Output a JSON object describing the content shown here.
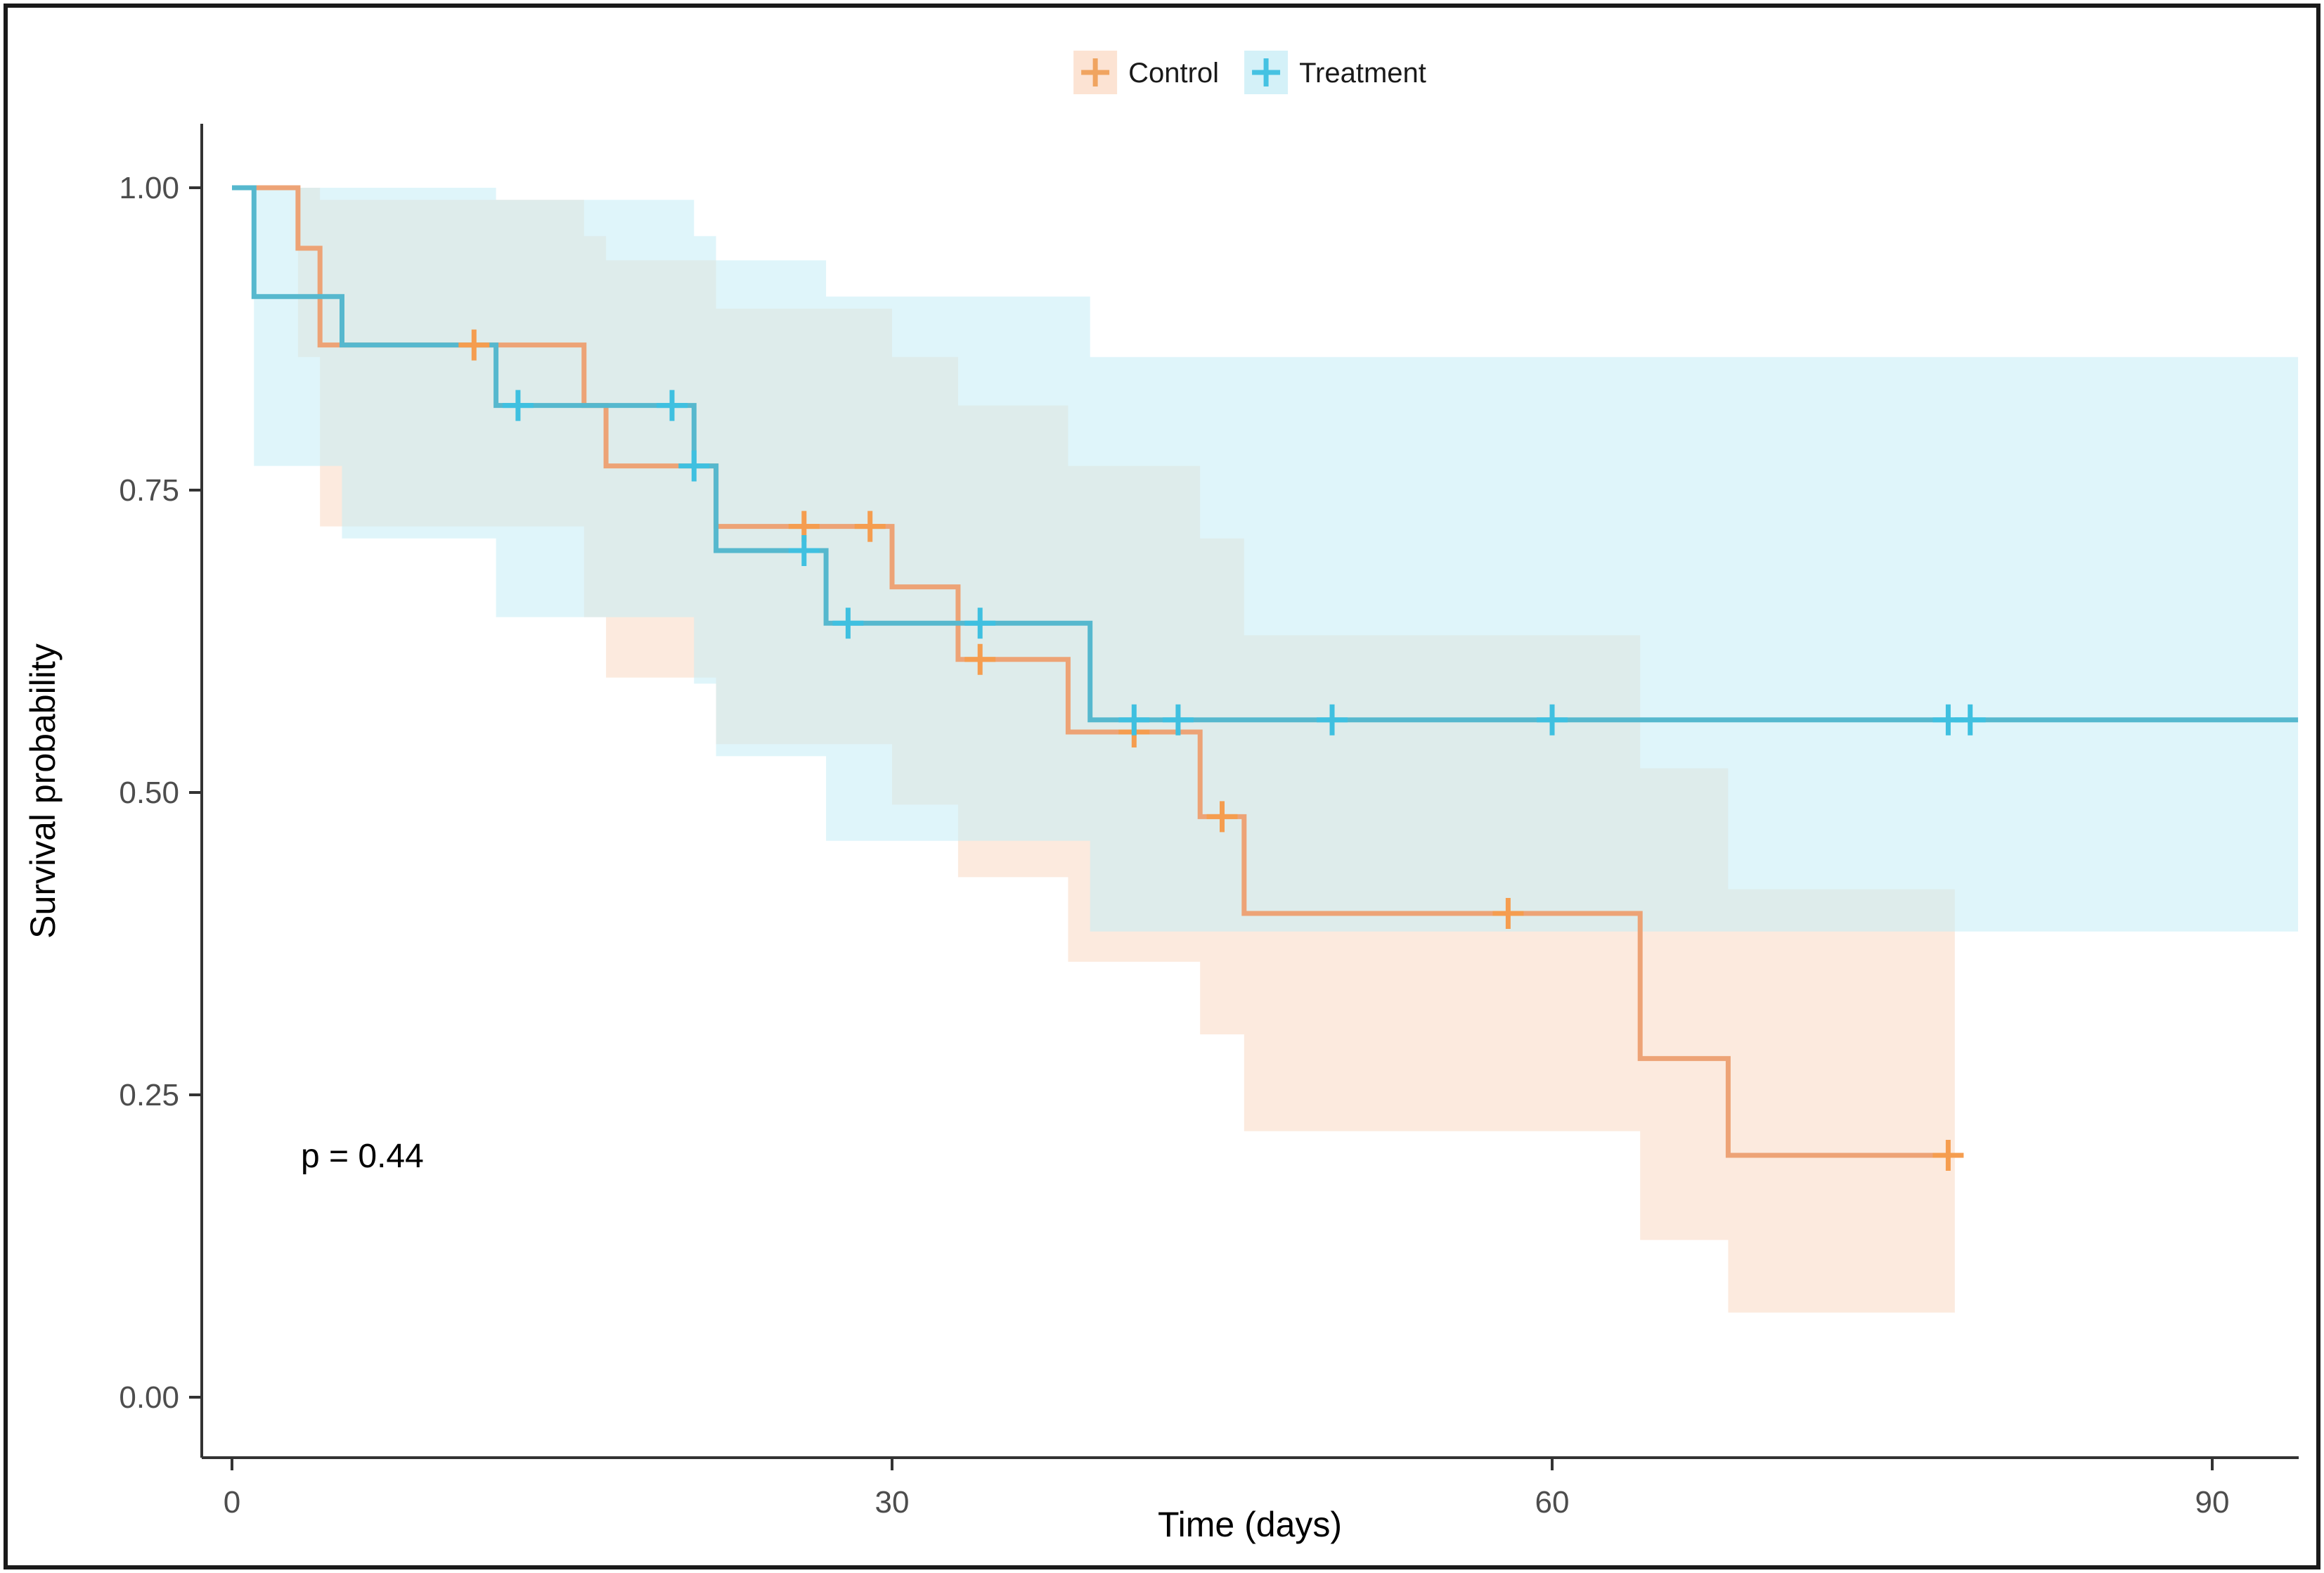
{
  "figure": {
    "border_color": "#1a1a1a",
    "background": "#ffffff"
  },
  "legend": {
    "items": [
      {
        "label": "Control",
        "key": "plus-cross",
        "color": "#f0a460",
        "band_color": "#fbdcc8"
      },
      {
        "label": "Treatment",
        "key": "plus-cross",
        "color": "#45c2e2",
        "band_color": "#c9edf6"
      }
    ]
  },
  "annotation": {
    "p_value_text": "p = 0.44",
    "at_time": 3.5,
    "at_survival": 0.205
  },
  "chart_data": {
    "type": "line",
    "subtype": "kaplan-meier-step",
    "title": "",
    "xlabel": "Time (days)",
    "ylabel": "Survival probability",
    "xlim": [
      -1.4,
      93.9
    ],
    "ylim": [
      -0.05,
      1.053
    ],
    "x_ticks": [
      0,
      30,
      60,
      90
    ],
    "y_ticks": [
      "1.00",
      "0.75",
      "0.50",
      "0.25",
      "0.00"
    ],
    "y_tick_values": [
      1.0,
      0.75,
      0.5,
      0.25,
      0.0
    ],
    "grid": false,
    "legend_position": "top-center",
    "series": [
      {
        "name": "Control",
        "line_color": "#eda376",
        "mark_color": "#f59d4f",
        "band_color": "#f9d8c2",
        "band_opacity": 0.55,
        "end_time": 78.3,
        "steps": [
          {
            "t": 0,
            "s": 1.0
          },
          {
            "t": 3,
            "s": 0.95
          },
          {
            "t": 4,
            "s": 0.87
          },
          {
            "t": 16,
            "s": 0.82
          },
          {
            "t": 17,
            "s": 0.77
          },
          {
            "t": 22,
            "s": 0.72
          },
          {
            "t": 30,
            "s": 0.67
          },
          {
            "t": 33,
            "s": 0.61
          },
          {
            "t": 38,
            "s": 0.55
          },
          {
            "t": 44,
            "s": 0.48
          },
          {
            "t": 46,
            "s": 0.4
          },
          {
            "t": 64,
            "s": 0.28
          },
          {
            "t": 68,
            "s": 0.2
          }
        ],
        "censors": [
          {
            "t": 11,
            "s": 0.87
          },
          {
            "t": 26,
            "s": 0.72
          },
          {
            "t": 29,
            "s": 0.72
          },
          {
            "t": 34,
            "s": 0.61
          },
          {
            "t": 41,
            "s": 0.55
          },
          {
            "t": 45,
            "s": 0.48
          },
          {
            "t": 58,
            "s": 0.4
          },
          {
            "t": 78,
            "s": 0.2
          }
        ],
        "ci": [
          {
            "t": 3,
            "lo": 0.86,
            "hi": 1.0
          },
          {
            "t": 4,
            "lo": 0.72,
            "hi": 0.99
          },
          {
            "t": 16,
            "lo": 0.645,
            "hi": 0.96
          },
          {
            "t": 17,
            "lo": 0.595,
            "hi": 0.94
          },
          {
            "t": 22,
            "lo": 0.54,
            "hi": 0.9
          },
          {
            "t": 30,
            "lo": 0.49,
            "hi": 0.86
          },
          {
            "t": 33,
            "lo": 0.43,
            "hi": 0.82
          },
          {
            "t": 38,
            "lo": 0.36,
            "hi": 0.77
          },
          {
            "t": 44,
            "lo": 0.3,
            "hi": 0.71
          },
          {
            "t": 46,
            "lo": 0.22,
            "hi": 0.63
          },
          {
            "t": 64,
            "lo": 0.13,
            "hi": 0.52
          },
          {
            "t": 68,
            "lo": 0.07,
            "hi": 0.42
          }
        ]
      },
      {
        "name": "Treatment",
        "line_color": "#56b8ce",
        "mark_color": "#3fc0e0",
        "band_color": "#c5ecf6",
        "band_opacity": 0.55,
        "end_time": 93.9,
        "steps": [
          {
            "t": 0,
            "s": 1.0
          },
          {
            "t": 1,
            "s": 0.91
          },
          {
            "t": 5,
            "s": 0.87
          },
          {
            "t": 12,
            "s": 0.82
          },
          {
            "t": 21,
            "s": 0.77
          },
          {
            "t": 22,
            "s": 0.7
          },
          {
            "t": 27,
            "s": 0.64
          },
          {
            "t": 39,
            "s": 0.56
          }
        ],
        "censors": [
          {
            "t": 13,
            "s": 0.82
          },
          {
            "t": 20,
            "s": 0.82
          },
          {
            "t": 21,
            "s": 0.77
          },
          {
            "t": 26,
            "s": 0.7
          },
          {
            "t": 28,
            "s": 0.64
          },
          {
            "t": 34,
            "s": 0.64
          },
          {
            "t": 41,
            "s": 0.56
          },
          {
            "t": 43,
            "s": 0.56
          },
          {
            "t": 50,
            "s": 0.56
          },
          {
            "t": 60,
            "s": 0.56
          },
          {
            "t": 78,
            "s": 0.56
          },
          {
            "t": 79,
            "s": 0.56
          }
        ],
        "ci": [
          {
            "t": 1,
            "lo": 0.77,
            "hi": 1.0
          },
          {
            "t": 5,
            "lo": 0.71,
            "hi": 1.0
          },
          {
            "t": 12,
            "lo": 0.645,
            "hi": 0.99
          },
          {
            "t": 21,
            "lo": 0.59,
            "hi": 0.96
          },
          {
            "t": 22,
            "lo": 0.53,
            "hi": 0.94
          },
          {
            "t": 27,
            "lo": 0.46,
            "hi": 0.91
          },
          {
            "t": 39,
            "lo": 0.385,
            "hi": 0.86
          }
        ]
      }
    ]
  }
}
